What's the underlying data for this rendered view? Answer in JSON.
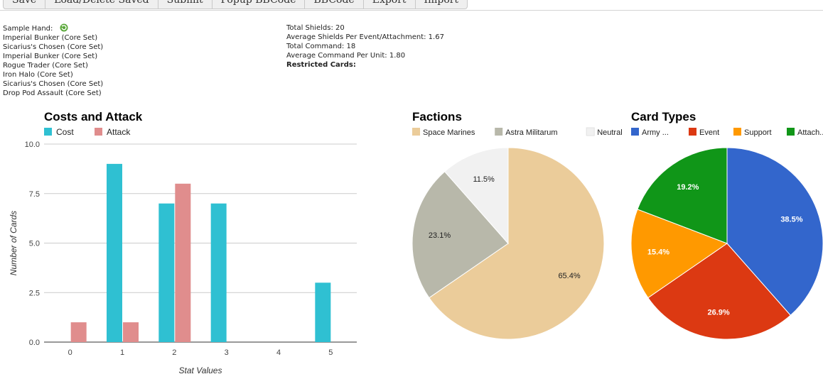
{
  "toolbar": {
    "buttons": [
      "Save",
      "Load/Delete Saved",
      "Submit",
      "Popup BBCode",
      "BBCode",
      "Export",
      "Import"
    ]
  },
  "sample_hand": {
    "label": "Sample Hand:",
    "refresh_icon": "refresh-icon",
    "cards": [
      "Imperial Bunker (Core Set)",
      "Sicarius's Chosen (Core Set)",
      "Imperial Bunker (Core Set)",
      "Rogue Trader (Core Set)",
      "Iron Halo (Core Set)",
      "Sicarius's Chosen (Core Set)",
      "Drop Pod Assault (Core Set)"
    ]
  },
  "stats": {
    "total_shields": "Total Shields: 20",
    "avg_shields": "Average Shields Per Event/Attachment: 1.67",
    "total_command": "Total Command: 18",
    "avg_command": "Average Command Per Unit: 1.80",
    "restricted": "Restricted Cards:"
  },
  "chart_data": [
    {
      "type": "bar",
      "title": "Costs and Attack",
      "xlabel": "Stat Values",
      "ylabel": "Number of Cards",
      "categories": [
        "0",
        "1",
        "2",
        "3",
        "4",
        "5"
      ],
      "ylim": [
        0,
        10
      ],
      "yticks": [
        "0.0",
        "2.5",
        "5.0",
        "7.5",
        "10.0"
      ],
      "grid": true,
      "legend": "top-left",
      "series": [
        {
          "name": "Cost",
          "color": "#2fc0d2",
          "values": [
            0,
            9,
            7,
            7,
            0,
            3
          ]
        },
        {
          "name": "Attack",
          "color": "#e08d8d",
          "values": [
            1,
            1,
            8,
            0,
            0,
            0
          ]
        }
      ]
    },
    {
      "type": "pie",
      "title": "Factions",
      "legend": "top",
      "slices": [
        {
          "name": "Space Marines",
          "value": 65.4,
          "label": "65.4%",
          "color": "#ebcc9a",
          "text_color": "#222222"
        },
        {
          "name": "Astra Militarum",
          "value": 23.1,
          "label": "23.1%",
          "color": "#b8b8aa",
          "text_color": "#222222"
        },
        {
          "name": "Neutral",
          "value": 11.5,
          "label": "11.5%",
          "color": "#f1f1f1",
          "text_color": "#222222"
        }
      ]
    },
    {
      "type": "pie",
      "title": "Card Types",
      "legend": "top",
      "slices": [
        {
          "name": "Army ...",
          "value": 38.5,
          "label": "38.5%",
          "color": "#3366cc",
          "text_color": "#ffffff"
        },
        {
          "name": "Event",
          "value": 26.9,
          "label": "26.9%",
          "color": "#dc3912",
          "text_color": "#ffffff"
        },
        {
          "name": "Support",
          "value": 15.4,
          "label": "15.4%",
          "color": "#ff9900",
          "text_color": "#ffffff"
        },
        {
          "name": "Attach...",
          "value": 19.2,
          "label": "19.2%",
          "color": "#109618",
          "text_color": "#ffffff"
        }
      ]
    }
  ]
}
